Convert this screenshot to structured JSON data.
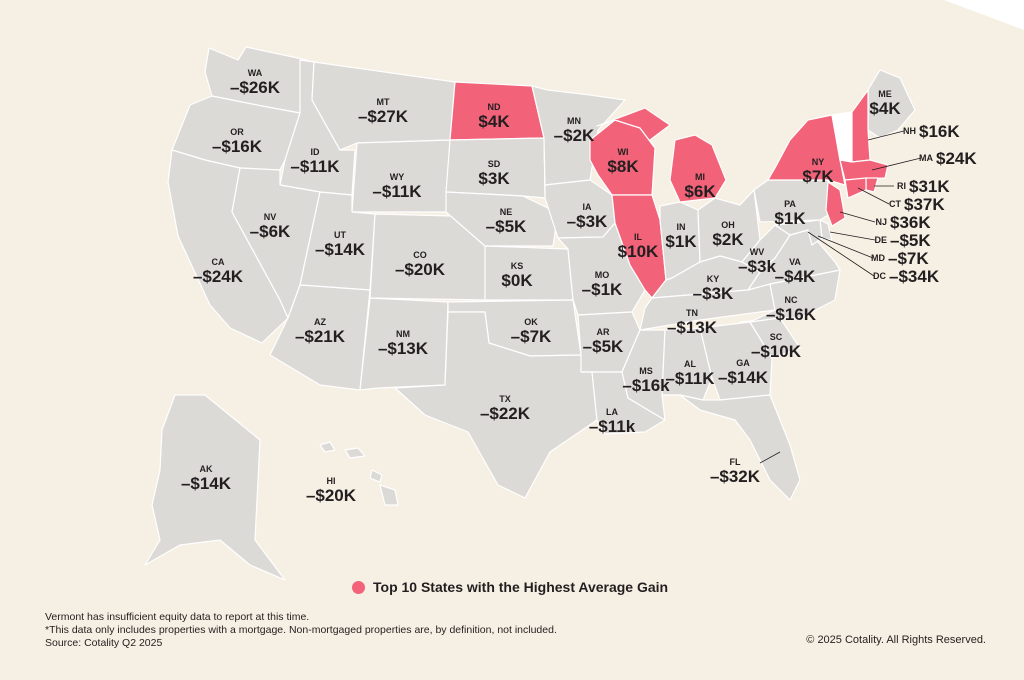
{
  "colors": {
    "background": "#f6efe3",
    "state_default": "#dcdad7",
    "state_highlight": "#f2637a",
    "state_nodata": "#ffffff"
  },
  "legend": {
    "label": "Top 10 States with the Highest Average Gain"
  },
  "notes": [
    "Vermont has insufficient equity data to report at this time.",
    "*This data only includes properties with a mortgage. Non-mortgaged properties are, by definition, not included.",
    "Source: Cotality Q2 2025"
  ],
  "copyright": "© 2025 Cotality. All Rights Reserved.",
  "states": [
    {
      "abbr": "WA",
      "value": "–$26K"
    },
    {
      "abbr": "OR",
      "value": "–$16K"
    },
    {
      "abbr": "CA",
      "value": "–$24K"
    },
    {
      "abbr": "ID",
      "value": "–$11K"
    },
    {
      "abbr": "NV",
      "value": "–$6K"
    },
    {
      "abbr": "MT",
      "value": "–$27K"
    },
    {
      "abbr": "WY",
      "value": "–$11K"
    },
    {
      "abbr": "UT",
      "value": "–$14K"
    },
    {
      "abbr": "AZ",
      "value": "–$21K"
    },
    {
      "abbr": "CO",
      "value": "–$20K"
    },
    {
      "abbr": "NM",
      "value": "–$13K"
    },
    {
      "abbr": "ND",
      "value": "$4K",
      "highlight": true
    },
    {
      "abbr": "SD",
      "value": "$3K"
    },
    {
      "abbr": "NE",
      "value": "–$5K"
    },
    {
      "abbr": "KS",
      "value": "$0K"
    },
    {
      "abbr": "OK",
      "value": "–$7K"
    },
    {
      "abbr": "TX",
      "value": "–$22K"
    },
    {
      "abbr": "MN",
      "value": "–$2K"
    },
    {
      "abbr": "IA",
      "value": "–$3K"
    },
    {
      "abbr": "MO",
      "value": "–$1K"
    },
    {
      "abbr": "AR",
      "value": "–$5K"
    },
    {
      "abbr": "LA",
      "value": "–$11k"
    },
    {
      "abbr": "WI",
      "value": "$8K",
      "highlight": true
    },
    {
      "abbr": "IL",
      "value": "$10K",
      "highlight": true
    },
    {
      "abbr": "MI",
      "value": "$6K",
      "highlight": true
    },
    {
      "abbr": "IN",
      "value": "$1K"
    },
    {
      "abbr": "OH",
      "value": "$2K"
    },
    {
      "abbr": "KY",
      "value": "–$3K"
    },
    {
      "abbr": "TN",
      "value": "–$13K"
    },
    {
      "abbr": "MS",
      "value": "–$16k"
    },
    {
      "abbr": "AL",
      "value": "–$11K"
    },
    {
      "abbr": "GA",
      "value": "–$14K"
    },
    {
      "abbr": "FL",
      "value": "–$32K"
    },
    {
      "abbr": "SC",
      "value": "–$10K"
    },
    {
      "abbr": "NC",
      "value": "–$16K"
    },
    {
      "abbr": "VA",
      "value": "–$4K"
    },
    {
      "abbr": "WV",
      "value": "–$3k"
    },
    {
      "abbr": "PA",
      "value": "$1K"
    },
    {
      "abbr": "NY",
      "value": "$7K",
      "highlight": true
    },
    {
      "abbr": "ME",
      "value": "$4K"
    },
    {
      "abbr": "NH",
      "value": "$16K",
      "highlight": true
    },
    {
      "abbr": "MA",
      "value": "$24K",
      "highlight": true
    },
    {
      "abbr": "RI",
      "value": "$31K",
      "highlight": true
    },
    {
      "abbr": "CT",
      "value": "$37K",
      "highlight": true
    },
    {
      "abbr": "NJ",
      "value": "$36K",
      "highlight": true
    },
    {
      "abbr": "DE",
      "value": "–$5K"
    },
    {
      "abbr": "MD",
      "value": "–$7K"
    },
    {
      "abbr": "DC",
      "value": "–$34K"
    },
    {
      "abbr": "AK",
      "value": "–$14K"
    },
    {
      "abbr": "HI",
      "value": "–$20K"
    }
  ]
}
